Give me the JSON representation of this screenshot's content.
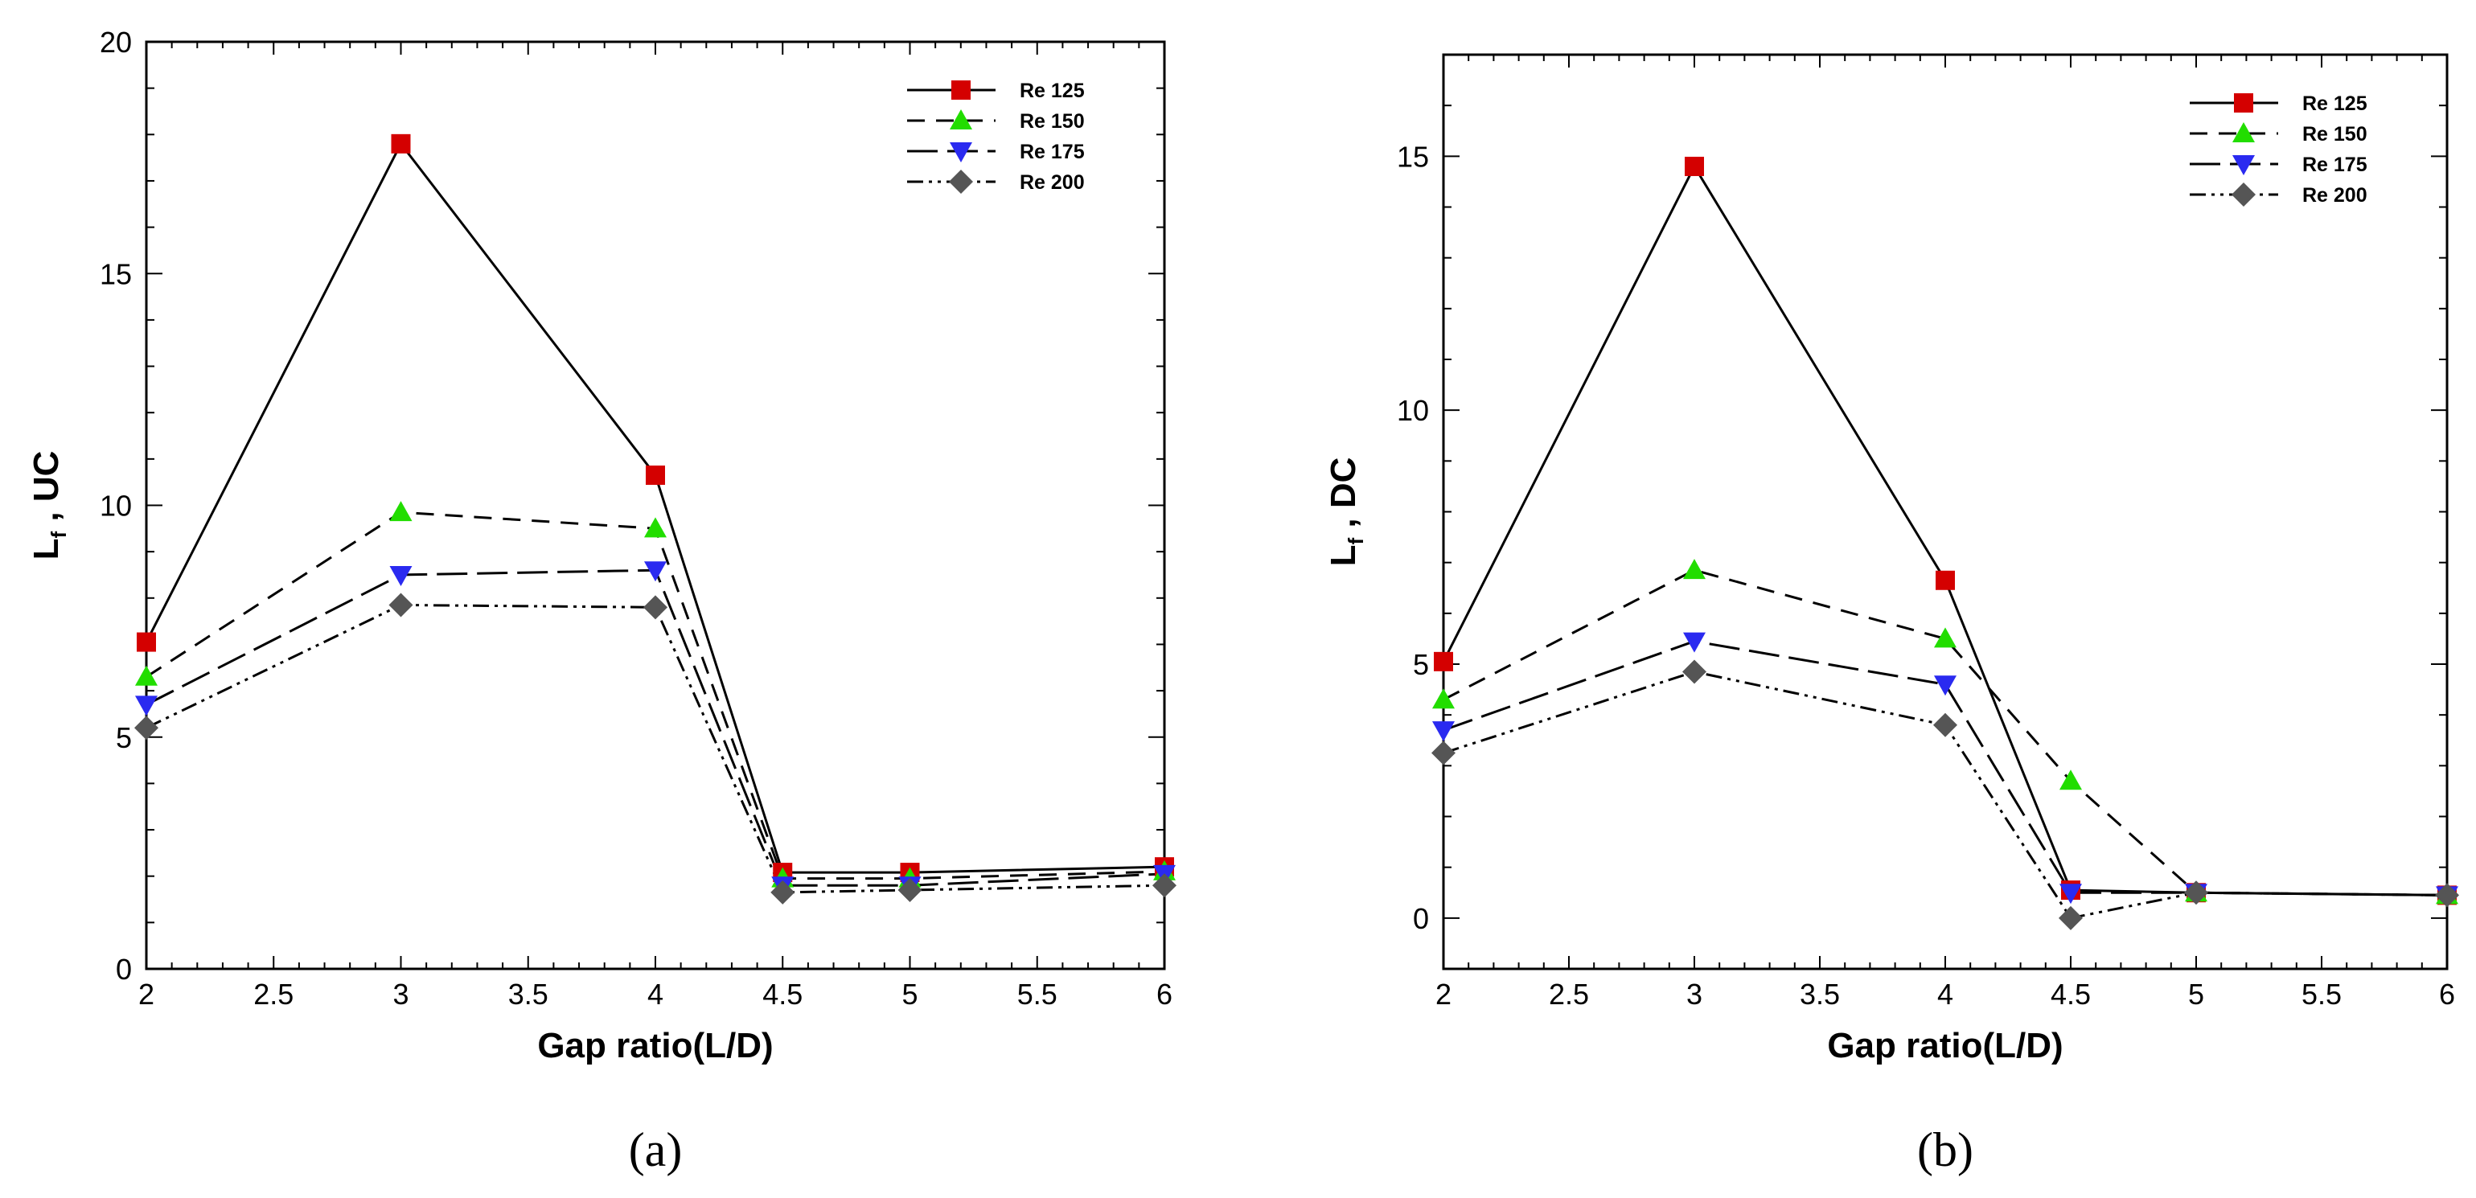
{
  "chart_data": [
    {
      "type": "line",
      "panel_label": "(a)",
      "xlabel": "Gap ratio(L/D)",
      "ylabel_main": "L",
      "ylabel_sub": "f",
      "ylabel_rest": " , UC",
      "xlim": [
        2,
        6
      ],
      "ylim": [
        0,
        20
      ],
      "xticks": [
        2,
        2.5,
        3,
        3.5,
        4,
        4.5,
        5,
        5.5,
        6
      ],
      "xtick_labels": [
        "2",
        "2.5",
        "3",
        "3.5",
        "4",
        "4.5",
        "5",
        "5.5",
        "6"
      ],
      "yticks": [
        0,
        5,
        10,
        15,
        20
      ],
      "ytick_labels": [
        "0",
        "5",
        "10",
        "15",
        "20"
      ],
      "legend_position": "top-right",
      "x": [
        2,
        3,
        4,
        4.5,
        5,
        6
      ],
      "series": [
        {
          "name": "Re 125",
          "values": [
            7.05,
            17.8,
            10.65,
            2.08,
            2.08,
            2.2
          ],
          "color": "#d40000",
          "marker": "square",
          "dash": "solid"
        },
        {
          "name": "Re 150",
          "values": [
            6.3,
            9.85,
            9.5,
            1.95,
            1.95,
            2.1
          ],
          "color": "#22dd00",
          "marker": "triangle-up",
          "dash": "dashed"
        },
        {
          "name": "Re 175",
          "values": [
            5.7,
            8.5,
            8.6,
            1.8,
            1.8,
            2.05
          ],
          "color": "#2a2af0",
          "marker": "triangle-down",
          "dash": "longdash"
        },
        {
          "name": "Re 200",
          "values": [
            5.2,
            7.85,
            7.8,
            1.65,
            1.7,
            1.8
          ],
          "color": "#555555",
          "marker": "diamond",
          "dash": "dashdotdot"
        }
      ]
    },
    {
      "type": "line",
      "panel_label": "(b)",
      "xlabel": "Gap ratio(L/D)",
      "ylabel_main": "L",
      "ylabel_sub": "f",
      "ylabel_rest": " , DC",
      "xlim": [
        2,
        6
      ],
      "ylim": [
        -1,
        17
      ],
      "xticks": [
        2,
        2.5,
        3,
        3.5,
        4,
        4.5,
        5,
        5.5,
        6
      ],
      "xtick_labels": [
        "2",
        "2.5",
        "3",
        "3.5",
        "4",
        "4.5",
        "5",
        "5.5",
        "6"
      ],
      "yticks": [
        0,
        5,
        10,
        15
      ],
      "ytick_labels": [
        "0",
        "5",
        "10",
        "15"
      ],
      "legend_position": "top-right",
      "x": [
        2,
        3,
        4,
        4.5,
        5,
        6
      ],
      "series": [
        {
          "name": "Re 125",
          "values": [
            5.05,
            14.8,
            6.65,
            0.55,
            0.5,
            0.45
          ],
          "color": "#d40000",
          "marker": "square",
          "dash": "solid"
        },
        {
          "name": "Re 150",
          "values": [
            4.3,
            6.85,
            5.5,
            2.7,
            0.5,
            0.45
          ],
          "color": "#22dd00",
          "marker": "triangle-up",
          "dash": "dashed"
        },
        {
          "name": "Re 175",
          "values": [
            3.7,
            5.45,
            4.6,
            0.5,
            0.5,
            0.45
          ],
          "color": "#2a2af0",
          "marker": "triangle-down",
          "dash": "longdash"
        },
        {
          "name": "Re 200",
          "values": [
            3.25,
            4.85,
            3.8,
            0.0,
            0.5,
            0.45
          ],
          "color": "#555555",
          "marker": "diamond",
          "dash": "dashdotdot"
        }
      ]
    }
  ]
}
